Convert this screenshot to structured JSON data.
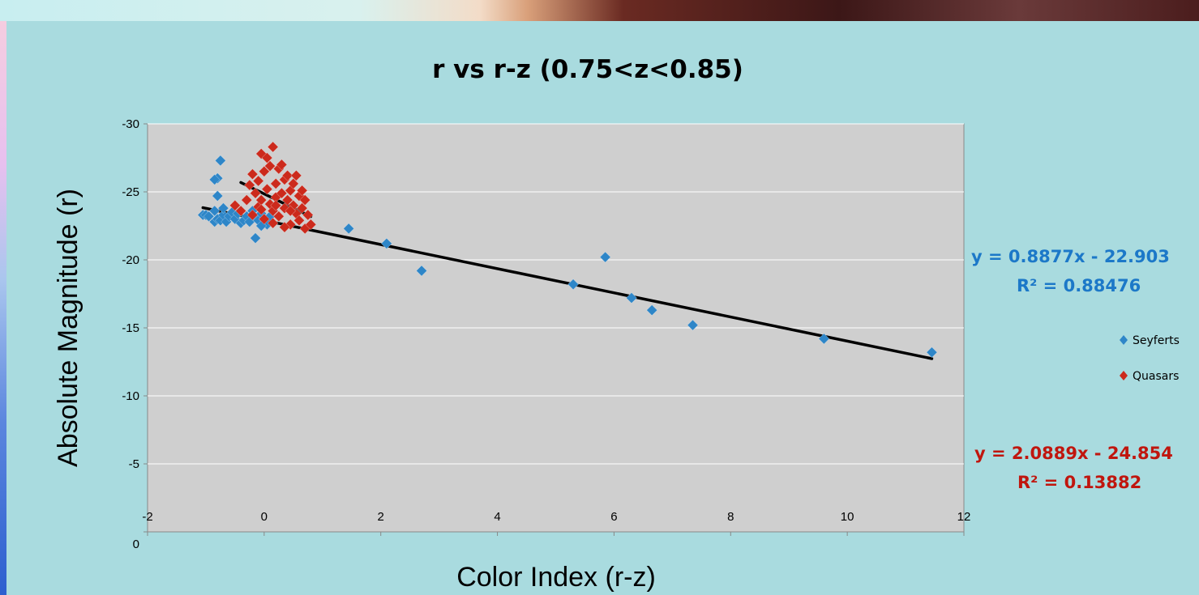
{
  "chart_data": {
    "type": "scatter",
    "title": "r vs r-z (0.75<z<0.85)",
    "xlabel": "Color Index (r-z)",
    "ylabel": "Absolute Magnitude (r)",
    "xlim": [
      -2,
      12
    ],
    "ylim": [
      0,
      -30
    ],
    "x_ticks": [
      "-2",
      "0",
      "2",
      "4",
      "6",
      "8",
      "10",
      "12"
    ],
    "y_ticks": [
      "0",
      "-5",
      "-10",
      "-15",
      "-20",
      "-25",
      "-30"
    ],
    "grid": true,
    "legend_position": "right",
    "series": [
      {
        "name": "Seyferts",
        "color": "#2e86c8",
        "marker": "diamond",
        "points": [
          [
            -1.05,
            -23.3
          ],
          [
            -1.0,
            -23.3
          ],
          [
            -0.95,
            -23.2
          ],
          [
            -0.85,
            -22.8
          ],
          [
            -0.85,
            -23.6
          ],
          [
            -0.8,
            -23.0
          ],
          [
            -0.75,
            -22.9
          ],
          [
            -0.7,
            -23.3
          ],
          [
            -0.65,
            -22.8
          ],
          [
            -0.6,
            -23.2
          ],
          [
            -0.55,
            -23.5
          ],
          [
            -0.5,
            -23.0
          ],
          [
            -0.45,
            -23.4
          ],
          [
            -0.4,
            -22.7
          ],
          [
            -0.35,
            -22.9
          ],
          [
            -0.3,
            -23.2
          ],
          [
            -0.25,
            -22.8
          ],
          [
            -0.2,
            -23.6
          ],
          [
            -0.15,
            -23.1
          ],
          [
            -0.1,
            -22.9
          ],
          [
            -0.05,
            -23.4
          ],
          [
            0.0,
            -23.0
          ],
          [
            0.05,
            -22.6
          ],
          [
            0.1,
            -23.2
          ],
          [
            -0.8,
            -26.0
          ],
          [
            -0.85,
            -25.9
          ],
          [
            -0.8,
            -24.7
          ],
          [
            -0.75,
            -27.3
          ],
          [
            -0.7,
            -23.8
          ],
          [
            -0.15,
            -21.6
          ],
          [
            -0.05,
            -22.5
          ],
          [
            1.45,
            -22.3
          ],
          [
            2.1,
            -21.2
          ],
          [
            2.7,
            -19.2
          ],
          [
            5.3,
            -18.2
          ],
          [
            5.85,
            -20.2
          ],
          [
            6.3,
            -17.2
          ],
          [
            6.65,
            -16.3
          ],
          [
            7.35,
            -15.2
          ],
          [
            9.6,
            -14.2
          ],
          [
            11.45,
            -13.2
          ]
        ]
      },
      {
        "name": "Quasars",
        "color": "#cc2a1c",
        "marker": "diamond",
        "points": [
          [
            -0.5,
            -24.0
          ],
          [
            -0.4,
            -23.6
          ],
          [
            -0.3,
            -24.4
          ],
          [
            -0.25,
            -25.5
          ],
          [
            -0.2,
            -26.3
          ],
          [
            -0.2,
            -23.3
          ],
          [
            -0.15,
            -24.9
          ],
          [
            -0.1,
            -25.8
          ],
          [
            -0.1,
            -23.9
          ],
          [
            -0.05,
            -27.8
          ],
          [
            -0.05,
            -24.4
          ],
          [
            0.0,
            -26.5
          ],
          [
            0.0,
            -23.0
          ],
          [
            0.05,
            -25.2
          ],
          [
            0.05,
            -27.5
          ],
          [
            0.1,
            -24.1
          ],
          [
            0.1,
            -26.9
          ],
          [
            0.15,
            -28.3
          ],
          [
            0.15,
            -23.6
          ],
          [
            0.2,
            -25.6
          ],
          [
            0.2,
            -24.6
          ],
          [
            0.25,
            -26.7
          ],
          [
            0.25,
            -23.2
          ],
          [
            0.3,
            -24.9
          ],
          [
            0.3,
            -27.0
          ],
          [
            0.35,
            -25.9
          ],
          [
            0.35,
            -23.8
          ],
          [
            0.4,
            -24.4
          ],
          [
            0.4,
            -26.2
          ],
          [
            0.45,
            -25.1
          ],
          [
            0.45,
            -22.6
          ],
          [
            0.5,
            -24.0
          ],
          [
            0.5,
            -25.6
          ],
          [
            0.55,
            -23.4
          ],
          [
            0.55,
            -26.2
          ],
          [
            0.6,
            -24.7
          ],
          [
            0.6,
            -22.9
          ],
          [
            0.65,
            -25.1
          ],
          [
            0.65,
            -23.8
          ],
          [
            0.7,
            -24.4
          ],
          [
            0.7,
            -22.3
          ],
          [
            0.75,
            -23.3
          ],
          [
            0.8,
            -22.6
          ],
          [
            0.35,
            -22.4
          ],
          [
            0.15,
            -22.7
          ],
          [
            -0.05,
            -23.7
          ],
          [
            0.2,
            -24.0
          ],
          [
            0.45,
            -23.6
          ]
        ]
      }
    ],
    "trendlines": [
      {
        "series": "Seyferts",
        "slope": 0.8877,
        "intercept": -22.903,
        "x_range": [
          -1.05,
          11.45
        ],
        "equation": "y = 0.8877x - 22.903",
        "r2": "R² = 0.88476"
      },
      {
        "series": "Quasars",
        "slope": 2.0889,
        "intercept": -24.854,
        "x_range": [
          -0.4,
          0.8
        ],
        "equation": "y = 2.0889x - 24.854",
        "r2": "R² = 0.13882"
      }
    ]
  }
}
